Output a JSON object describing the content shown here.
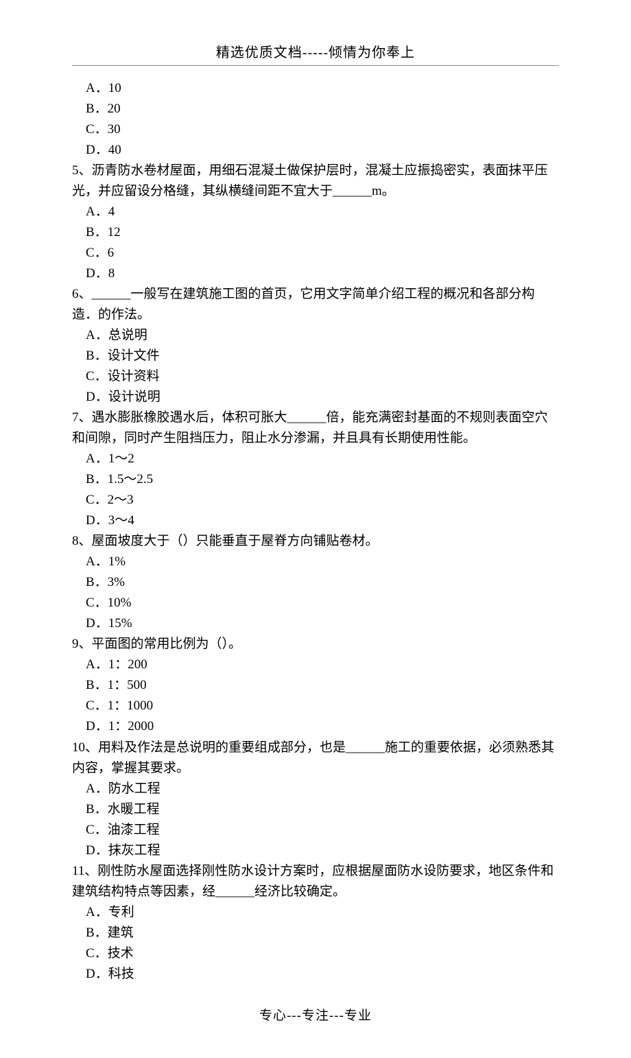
{
  "header": "精选优质文档-----倾情为你奉上",
  "footer": "专心---专注---专业",
  "pre_options": [
    "A．10",
    "B．20",
    "C．30",
    "D．40"
  ],
  "questions": [
    {
      "num": "5、",
      "text": "沥青防水卷材屋面，用细石混凝土做保护层时，混凝土应振捣密实，表面抹平压光，并应留设分格缝，其纵横缝间距不宜大于______m。",
      "options": [
        "A．4",
        "B．12",
        "C．6",
        "D．8"
      ]
    },
    {
      "num": "6、",
      "text": "______一般写在建筑施工图的首页，它用文字简单介绍工程的概况和各部分构造．的作法。",
      "options": [
        "A．总说明",
        "B．设计文件",
        "C．设计资料",
        "D．设计说明"
      ]
    },
    {
      "num": "7、",
      "text": "遇水膨胀橡胶遇水后，体积可胀大______倍，能充满密封基面的不规则表面空穴和间隙，同时产生阻挡压力，阻止水分渗漏，并且具有长期使用性能。",
      "options": [
        "A．1～2",
        "B．1.5～2.5",
        "C．2～3",
        "D．3～4"
      ]
    },
    {
      "num": "8、",
      "text": "屋面坡度大于（）只能垂直于屋脊方向铺贴卷材。",
      "options": [
        "A．1%",
        "B．3%",
        "C．10%",
        "D．15%"
      ]
    },
    {
      "num": "9、",
      "text": "平面图的常用比例为（）。",
      "options": [
        "A．1：200",
        "B．1：500",
        "C．1：1000",
        "D．1：2000"
      ]
    },
    {
      "num": "10、",
      "text": "用料及作法是总说明的重要组成部分，也是______施工的重要依据，必须熟悉其内容，掌握其要求。",
      "options": [
        "A．防水工程",
        "B．水暖工程",
        "C．油漆工程",
        "D．抹灰工程"
      ]
    },
    {
      "num": "11、",
      "text": "刚性防水屋面选择刚性防水设计方案时，应根据屋面防水设防要求，地区条件和建筑结构特点等因素，经______经济比较确定。",
      "options": [
        "A．专利",
        "B．建筑",
        "C．技术",
        "D．科技"
      ]
    }
  ]
}
